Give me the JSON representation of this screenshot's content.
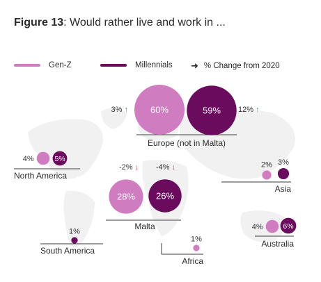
{
  "title": {
    "lead": "Figure 13",
    "rest": ": Would rather live and work in ..."
  },
  "legend": {
    "genz": "Gen-Z",
    "millennials": "Millennials",
    "change": "% Change from 2020",
    "change_icon": "right-arrow-icon"
  },
  "colors": {
    "genz": "#d07cc0",
    "millennials": "#6a0b5e",
    "up": "#2fa35a",
    "down": "#e0393e",
    "map": "#f1f1f1"
  },
  "chart_data": {
    "type": "bubble",
    "unit": "%",
    "series": [
      "Gen-Z",
      "Millennials"
    ],
    "regions": [
      {
        "key": "europe",
        "label": "Europe (not in Malta)",
        "values": {
          "genz": 60,
          "millennials": 59
        },
        "value_labels": {
          "genz": "60%",
          "millennials": "59%"
        },
        "change": {
          "genz": 3,
          "millennials": 12
        },
        "change_labels": {
          "genz": "3%",
          "millennials": "12%"
        }
      },
      {
        "key": "north_america",
        "label": "North America",
        "values": {
          "genz": 4,
          "millennials": 5
        },
        "value_labels": {
          "genz": "4%",
          "millennials": "5%"
        }
      },
      {
        "key": "asia",
        "label": "Asia",
        "values": {
          "genz": 2,
          "millennials": 3
        },
        "value_labels": {
          "genz": "2%",
          "millennials": "3%"
        }
      },
      {
        "key": "malta",
        "label": "Malta",
        "values": {
          "genz": 28,
          "millennials": 26
        },
        "value_labels": {
          "genz": "28%",
          "millennials": "26%"
        },
        "change": {
          "genz": -2,
          "millennials": -4
        },
        "change_labels": {
          "genz": "-2%",
          "millennials": "-4%"
        }
      },
      {
        "key": "south_america",
        "label": "South America",
        "values": {
          "millennials": 1
        },
        "value_labels": {
          "millennials": "1%"
        }
      },
      {
        "key": "africa",
        "label": "Africa",
        "values": {
          "genz": 1
        },
        "value_labels": {
          "genz": "1%"
        }
      },
      {
        "key": "australia",
        "label": "Australia",
        "values": {
          "genz": 4,
          "millennials": 6
        },
        "value_labels": {
          "genz": "4%",
          "millennials": "6%"
        }
      }
    ]
  }
}
